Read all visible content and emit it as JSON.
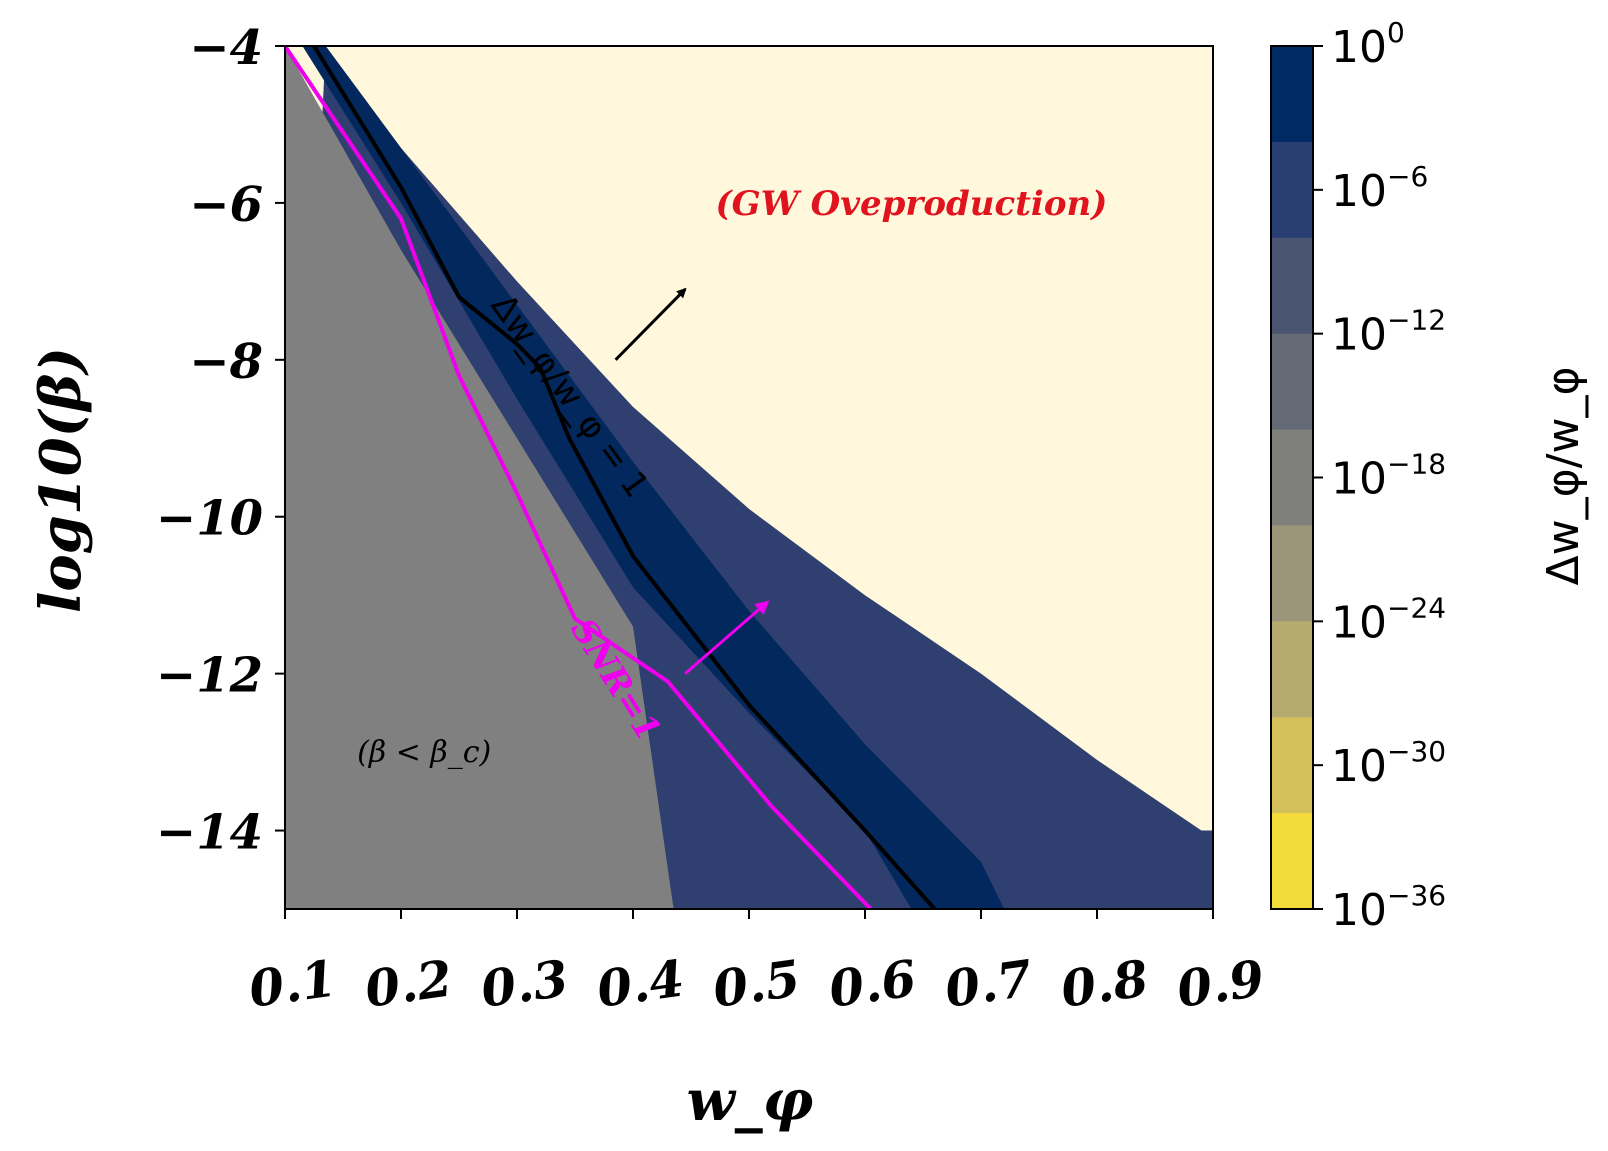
{
  "chart_data": {
    "type": "heatmap",
    "xlabel": "w_φ",
    "ylabel": "log10(β)",
    "xlim": [
      0.1,
      0.9
    ],
    "ylim": [
      -15,
      -4
    ],
    "x_ticks": [
      "0.1",
      "0.2",
      "0.3",
      "0.4",
      "0.5",
      "0.6",
      "0.7",
      "0.8",
      "0.9"
    ],
    "x_tick_values": [
      0.1,
      0.2,
      0.3,
      0.4,
      0.5,
      0.6,
      0.7,
      0.8,
      0.9
    ],
    "y_ticks": [
      "−4",
      "−6",
      "−8",
      "−10",
      "−12",
      "−14"
    ],
    "y_tick_values": [
      -4,
      -6,
      -8,
      -10,
      -12,
      -14
    ],
    "colorbar": {
      "label": "Δw_φ/w_φ",
      "scale": "log",
      "tick_labels": [
        {
          "base": "10",
          "exp": "0"
        },
        {
          "base": "10",
          "exp": "−6"
        },
        {
          "base": "10",
          "exp": "−12"
        },
        {
          "base": "10",
          "exp": "−18"
        },
        {
          "base": "10",
          "exp": "−24"
        },
        {
          "base": "10",
          "exp": "−30"
        },
        {
          "base": "10",
          "exp": "−36"
        }
      ],
      "tick_exponents": [
        0,
        -6,
        -12,
        -18,
        -24,
        -30,
        -36
      ],
      "colors": [
        "#002a64",
        "#293e72",
        "#485470",
        "#646a76",
        "#7f7f7c",
        "#9b9679",
        "#b5ab6f",
        "#d3c05b",
        "#f3db3c"
      ]
    },
    "colors": {
      "background": "#fff8dc",
      "excluded_region": "#808080",
      "outer_band": "#2f4070",
      "inner_band": "#02285e",
      "snr_curve": "#ee00ee",
      "ratio_curve": "#000000"
    },
    "regions": {
      "gray_boundary": [
        [
          0.1,
          -4.0
        ],
        [
          0.2,
          -6.6
        ],
        [
          0.3,
          -9.0
        ],
        [
          0.4,
          -11.4
        ],
        [
          0.435,
          -15.0
        ]
      ],
      "outer_band_upper": [
        [
          0.135,
          -4.0
        ],
        [
          0.2,
          -5.3
        ],
        [
          0.3,
          -7.0
        ],
        [
          0.4,
          -8.6
        ],
        [
          0.5,
          -9.9
        ],
        [
          0.6,
          -11.0
        ],
        [
          0.7,
          -12.0
        ],
        [
          0.8,
          -13.1
        ],
        [
          0.89,
          -14.0
        ],
        [
          0.9,
          -14.0
        ]
      ],
      "inner_band_lower": [
        [
          0.115,
          -4.0
        ],
        [
          0.2,
          -6.0
        ],
        [
          0.3,
          -8.5
        ],
        [
          0.4,
          -10.9
        ],
        [
          0.5,
          -12.5
        ],
        [
          0.6,
          -14.0
        ],
        [
          0.64,
          -15.0
        ]
      ],
      "inner_band_upper": [
        [
          0.135,
          -4.0
        ],
        [
          0.2,
          -5.3
        ],
        [
          0.3,
          -7.3
        ],
        [
          0.4,
          -9.3
        ],
        [
          0.5,
          -11.2
        ],
        [
          0.6,
          -12.9
        ],
        [
          0.7,
          -14.4
        ],
        [
          0.72,
          -15.0
        ]
      ]
    },
    "curves": [
      {
        "label": "SNR=1",
        "points": [
          [
            0.1,
            -4.0
          ],
          [
            0.2,
            -6.2
          ],
          [
            0.25,
            -8.2
          ],
          [
            0.3,
            -9.7
          ],
          [
            0.35,
            -11.3
          ],
          [
            0.43,
            -12.1
          ],
          [
            0.52,
            -13.7
          ],
          [
            0.605,
            -15.0
          ]
        ]
      },
      {
        "label": "Δw_φ/w_φ = 1",
        "points": [
          [
            0.125,
            -4.0
          ],
          [
            0.2,
            -5.8
          ],
          [
            0.25,
            -7.2
          ],
          [
            0.3,
            -7.8
          ],
          [
            0.32,
            -8.1
          ],
          [
            0.345,
            -9.0
          ],
          [
            0.4,
            -10.5
          ],
          [
            0.5,
            -12.4
          ],
          [
            0.6,
            -14.0
          ],
          [
            0.66,
            -15.0
          ]
        ]
      }
    ],
    "annotations": [
      {
        "text": "(GW Oveproduction)",
        "x": 0.64,
        "y": -6.0
      },
      {
        "text": "(β < β_c)",
        "x": 0.22,
        "y": -13.0
      }
    ],
    "arrows": [
      {
        "from": [
          0.385,
          -8.0
        ],
        "to": [
          0.445,
          -7.1
        ],
        "color": "#000000"
      },
      {
        "from": [
          0.445,
          -12.0
        ],
        "to": [
          0.515,
          -11.1
        ],
        "color": "#ee00ee"
      }
    ]
  }
}
